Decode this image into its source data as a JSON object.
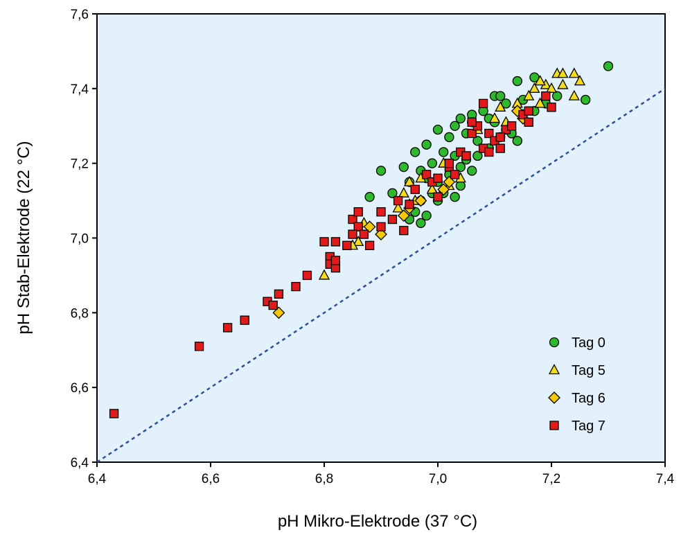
{
  "chart_data": {
    "type": "scatter",
    "xlabel": "pH Mikro-Elektrode (37 °C)",
    "ylabel": "pH Stab-Elektrode (22 °C)",
    "xlim": [
      6.4,
      7.4
    ],
    "ylim": [
      6.4,
      7.6
    ],
    "x_ticks": [
      "6,4",
      "6,6",
      "6,8",
      "7,0",
      "7,2",
      "7,4"
    ],
    "y_ticks": [
      "6,4",
      "6,6",
      "6,8",
      "7,0",
      "7,2",
      "7,4",
      "7,6"
    ],
    "grid": false,
    "legend_position": "bottom-right",
    "background": "#e3f1fc",
    "reference_line": {
      "style": "dotted",
      "color": "#2b4f9e",
      "points": [
        [
          6.4,
          6.4
        ],
        [
          7.4,
          7.4
        ]
      ]
    },
    "series": [
      {
        "name": "Tag 0",
        "marker": "circle",
        "color": "#2db82d",
        "points": [
          [
            7.3,
            7.46
          ],
          [
            7.14,
            7.42
          ],
          [
            7.17,
            7.43
          ],
          [
            7.26,
            7.37
          ],
          [
            7.21,
            7.38
          ],
          [
            7.19,
            7.36
          ],
          [
            7.1,
            7.38
          ],
          [
            7.11,
            7.38
          ],
          [
            7.15,
            7.37
          ],
          [
            7.14,
            7.26
          ],
          [
            7.12,
            7.36
          ],
          [
            7.08,
            7.34
          ],
          [
            7.17,
            7.34
          ],
          [
            7.06,
            7.33
          ],
          [
            7.04,
            7.32
          ],
          [
            7.03,
            7.3
          ],
          [
            7.0,
            7.29
          ],
          [
            7.05,
            7.28
          ],
          [
            7.02,
            7.27
          ],
          [
            7.07,
            7.26
          ],
          [
            7.09,
            7.24
          ],
          [
            7.01,
            7.23
          ],
          [
            6.98,
            7.25
          ],
          [
            7.03,
            7.22
          ],
          [
            6.96,
            7.23
          ],
          [
            7.05,
            7.21
          ],
          [
            6.99,
            7.2
          ],
          [
            6.97,
            7.18
          ],
          [
            6.9,
            7.18
          ],
          [
            7.06,
            7.18
          ],
          [
            7.02,
            7.17
          ],
          [
            6.98,
            7.16
          ],
          [
            7.0,
            7.15
          ],
          [
            6.95,
            7.15
          ],
          [
            7.04,
            7.14
          ],
          [
            6.99,
            7.12
          ],
          [
            7.01,
            7.12
          ],
          [
            6.97,
            7.1
          ],
          [
            7.03,
            7.11
          ],
          [
            6.94,
            7.19
          ],
          [
            6.92,
            7.12
          ],
          [
            6.96,
            7.07
          ],
          [
            6.98,
            7.06
          ],
          [
            6.95,
            7.05
          ],
          [
            6.97,
            7.04
          ],
          [
            6.88,
            7.11
          ],
          [
            7.1,
            7.31
          ],
          [
            7.12,
            7.29
          ],
          [
            7.09,
            7.32
          ],
          [
            7.13,
            7.28
          ],
          [
            7.07,
            7.22
          ],
          [
            7.11,
            7.27
          ],
          [
            7.0,
            7.1
          ],
          [
            7.04,
            7.19
          ],
          [
            7.06,
            7.31
          ]
        ]
      },
      {
        "name": "Tag 5",
        "marker": "triangle",
        "color": "#f5dc1a",
        "points": [
          [
            7.21,
            7.44
          ],
          [
            7.22,
            7.44
          ],
          [
            7.24,
            7.44
          ],
          [
            7.25,
            7.42
          ],
          [
            7.19,
            7.41
          ],
          [
            7.18,
            7.42
          ],
          [
            7.2,
            7.4
          ],
          [
            7.22,
            7.41
          ],
          [
            7.17,
            7.4
          ],
          [
            7.16,
            7.38
          ],
          [
            7.24,
            7.38
          ],
          [
            7.11,
            7.35
          ],
          [
            7.14,
            7.36
          ],
          [
            7.15,
            7.33
          ],
          [
            7.18,
            7.36
          ],
          [
            7.1,
            7.32
          ],
          [
            7.07,
            7.29
          ],
          [
            7.12,
            7.31
          ],
          [
            6.95,
            7.15
          ],
          [
            6.97,
            7.16
          ],
          [
            6.94,
            7.12
          ],
          [
            6.96,
            7.1
          ],
          [
            6.93,
            7.08
          ],
          [
            6.95,
            7.09
          ],
          [
            6.87,
            7.04
          ],
          [
            6.86,
            6.99
          ],
          [
            6.85,
            6.98
          ],
          [
            6.8,
            6.9
          ],
          [
            7.02,
            7.14
          ],
          [
            7.04,
            7.16
          ],
          [
            6.99,
            7.13
          ],
          [
            7.01,
            7.2
          ]
        ]
      },
      {
        "name": "Tag 6",
        "marker": "diamond",
        "color": "#f5c800",
        "points": [
          [
            6.72,
            6.8
          ],
          [
            6.9,
            7.01
          ],
          [
            6.88,
            7.03
          ],
          [
            6.95,
            7.08
          ],
          [
            6.94,
            7.06
          ],
          [
            6.97,
            7.1
          ],
          [
            7.01,
            7.13
          ],
          [
            7.02,
            7.15
          ],
          [
            7.14,
            7.34
          ],
          [
            7.15,
            7.32
          ]
        ]
      },
      {
        "name": "Tag 7",
        "marker": "square",
        "color": "#e31a1a",
        "points": [
          [
            6.43,
            6.53
          ],
          [
            6.58,
            6.71
          ],
          [
            6.63,
            6.76
          ],
          [
            6.66,
            6.78
          ],
          [
            6.7,
            6.83
          ],
          [
            6.71,
            6.82
          ],
          [
            6.72,
            6.85
          ],
          [
            6.75,
            6.87
          ],
          [
            6.77,
            6.9
          ],
          [
            6.8,
            6.99
          ],
          [
            6.81,
            6.95
          ],
          [
            6.81,
            6.93
          ],
          [
            6.82,
            6.92
          ],
          [
            6.82,
            6.94
          ],
          [
            6.82,
            6.99
          ],
          [
            6.84,
            6.98
          ],
          [
            6.85,
            7.05
          ],
          [
            6.86,
            7.07
          ],
          [
            6.86,
            7.03
          ],
          [
            6.85,
            7.01
          ],
          [
            6.87,
            7.01
          ],
          [
            6.88,
            6.98
          ],
          [
            6.9,
            7.07
          ],
          [
            6.9,
            7.03
          ],
          [
            6.92,
            7.05
          ],
          [
            6.93,
            7.1
          ],
          [
            6.94,
            7.02
          ],
          [
            6.95,
            7.09
          ],
          [
            6.96,
            7.13
          ],
          [
            6.98,
            7.17
          ],
          [
            6.99,
            7.15
          ],
          [
            7.0,
            7.11
          ],
          [
            7.0,
            7.16
          ],
          [
            7.02,
            7.19
          ],
          [
            7.02,
            7.2
          ],
          [
            7.03,
            7.17
          ],
          [
            7.04,
            7.23
          ],
          [
            7.05,
            7.22
          ],
          [
            7.06,
            7.28
          ],
          [
            7.07,
            7.3
          ],
          [
            7.08,
            7.24
          ],
          [
            7.08,
            7.36
          ],
          [
            7.09,
            7.28
          ],
          [
            7.09,
            7.23
          ],
          [
            7.1,
            7.26
          ],
          [
            7.11,
            7.24
          ],
          [
            7.12,
            7.29
          ],
          [
            7.13,
            7.3
          ],
          [
            7.15,
            7.33
          ],
          [
            7.16,
            7.34
          ],
          [
            7.16,
            7.31
          ],
          [
            7.19,
            7.38
          ],
          [
            7.2,
            7.35
          ],
          [
            7.06,
            7.31
          ],
          [
            7.11,
            7.27
          ]
        ]
      }
    ]
  }
}
